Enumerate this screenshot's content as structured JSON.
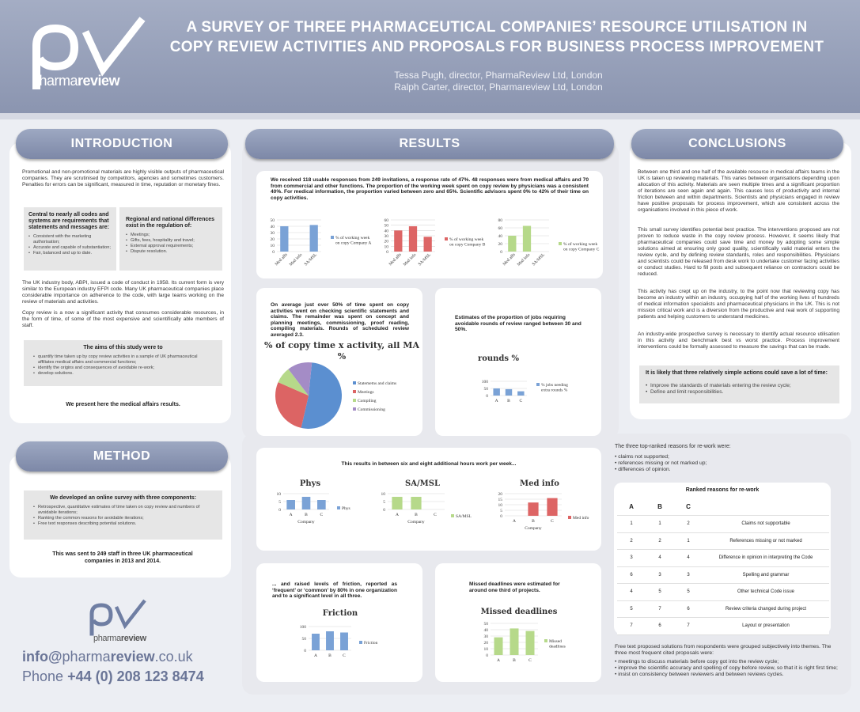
{
  "header": {
    "title_line1": "A SURVEY OF THREE PHARMACEUTICAL COMPANIES’ RESOURCE UTILISATION IN",
    "title_line2": "COPY REVIEW ACTIVITIES AND PROPOSALS FOR BUSINESS PROCESS IMPROVEMENT",
    "author1": "Tessa Pugh, director, PharmaReview Ltd, London",
    "author2": "Ralph Carter, director, Pharmareview Ltd, London",
    "logo_text_a": "pharma",
    "logo_text_b": "review"
  },
  "intro": {
    "heading": "INTRODUCTION",
    "p1": "Promotional and non-promotional materials are highly visible outputs of pharmaceutical companies. They are scrutinised by competitors, agencies and sometimes customers. Penalties for errors can be significant, measured in time, reputation or monetary fines.",
    "box1_title": "Central to nearly all codes and systems are requirements that statements and messages are:",
    "box1_items": [
      "Consistent with the marketing authorisation;",
      "Accurate and capable of substantiation;",
      "Fair, balanced and up to date."
    ],
    "box2_title": "Regional and national differences exist in the regulation of:",
    "box2_items": [
      "Meetings;",
      "Gifts, fees, hospitality and travel;",
      "External approval requirements;",
      "Dispute resolution."
    ],
    "p2": "The UK industry body, ABPI, issued a code of conduct in 1958. Its current form is very similar to the European industry EFPI code. Many UK pharmaceutical companies place considerable importance on adherence to the code, with large teams working on the review of materials and activities.",
    "p3": "Copy review is a now a significant activity that consumes considerable resources, in the form of time, of some of the most expensive and scientifically able members of staff.",
    "aims_title": "The aims of this study were to",
    "aims_items": [
      "quantify time taken up by copy review activities in a sample of UK pharmaceutical affiliates medical affairs and commercial functions;",
      "identify the origins and consequences of avoidable re-work;",
      "develop solutions."
    ],
    "present": "We present here the medical affairs results."
  },
  "method": {
    "heading": "METHOD",
    "box_title": "We developed an online survey with three components:",
    "items": [
      "Retrospective, quantitative estimates of time taken on copy review and numbers of avoidable iterations;",
      "Ranking the common reasons for avoidable iterations;",
      "Free text responses describing potential solutions."
    ],
    "sent": "This was sent to 249 staff in three UK pharmaceutical companies in 2013 and 2014."
  },
  "contact": {
    "email_a": "info@",
    "email_b": "pharma",
    "email_c": "review",
    "email_d": ".co.uk",
    "phone_a": "Phone ",
    "phone_b": "+44 (0) 208 123 8474",
    "logo_text_a": "pharma",
    "logo_text_b": "review"
  },
  "results": {
    "heading": "RESULTS",
    "r1": "We received 118 usable responses from 249 invitations, a response rate of 47%. 48 responses were from medical affairs and 70 from commercial and other functions. The proportion of the working week spent on copy review by physicians was a consistent 40%. For medical information, the proportion varied between zero and 65%. Scientific advisors spent 0% to 42% of their time on copy activities.",
    "r2": "On average just over 50% of time spent on copy activities went on checking scientific statements and claims. The remainder was spent on concept and planning meetings, commissioning, proof reading, compiling materials. Rounds of scheduled review averaged 2.3.",
    "r3": "Estimates of the proportion of jobs requiring avoidable rounds of review ranged between 30 and 50%.",
    "r4": "This results in between six and eight additional hours work per week...",
    "r5": "... and raised levels of friction, reported as ‘frequent’ or ‘common’ by 80% in one organization and to a significant level in all three.",
    "r6": "Missed deadlines were estimated for around one third of projects.",
    "reasons_intro": "The three top-ranked reasons for re-work were:",
    "reasons": [
      "claims not supported;",
      "references missing or not marked up;",
      "differences of opinion."
    ],
    "table_title": "Ranked reasons for re-work",
    "table_headers": [
      "A",
      "B",
      "C",
      ""
    ],
    "table_rows": [
      [
        "1",
        "1",
        "2",
        "Claims not supportable"
      ],
      [
        "2",
        "2",
        "1",
        "References missing or not marked"
      ],
      [
        "3",
        "4",
        "4",
        "Difference in opinion in interpreting the Code"
      ],
      [
        "6",
        "3",
        "3",
        "Spelling and grammar"
      ],
      [
        "4",
        "5",
        "5",
        "Other technical Code issue"
      ],
      [
        "5",
        "7",
        "6",
        "Review criteria changed during project"
      ],
      [
        "7",
        "6",
        "7",
        "Layout or presentation"
      ]
    ],
    "free_intro": "Free text proposed solutions from respondents were grouped subjectively into themes. The three most frequent cited proposals were:",
    "free_items": [
      "meetings to discuss materials before copy got into the review cycle;",
      "improve the scientific accuracy and spelling of copy before review, so that it is right first time;",
      "insist on consistency between reviewers and between reviews cycles."
    ]
  },
  "conclusions": {
    "heading": "CONCLUSIONS",
    "c1": "Between one third and one half of the available resource in medical affairs teams in the UK is taken up reviewing materials. This varies between organisations depending upon allocation of this activity. Materials are seen multiple times and a significant proportion of iterations are seen again and again. This causes loss of productivity and internal friction between and within departments. Scientists and physicians engaged in review have positive proposals for process improvement, which are consistent across the organisations involved in this piece of work.",
    "c2": "This small survey identifies potential best practice. The interventions proposed are not proven to reduce waste in the copy review process. However, it seems likely that pharmaceutical companies could save time and money by adopting some simple solutions aimed at ensuring only good quality, scientifically valid material enters the review cycle, and by defining review standards, roles and responsibilities. Physicians and scientists could be released from desk work to undertake customer facing activities or conduct studies. Hard to fill posts and subsequent reliance on contractors could be reduced.",
    "c3": "This activity has crept up on the industry, to the point now that reviewing copy has become an industry within an industry, occupying half of the working lives of hundreds of medical information specialists and pharmaceutical physicians in the UK. This is not mission critical work and is a diversion from the productive and real work of supporting patients and helping customers to understand medicines.",
    "c4": "An industry-wide prospective survey is necessary to identify actual resource utilisation in this activity and benchmark best vs worst practice. Process improvement interventions could be formally assessed to measure the savings that can be made.",
    "box_title": "It is likely that three relatively simple actions could save a lot of time:",
    "box_items": [
      "Improve the standards of materials entering the review cycle;",
      "Define and limit responsibilities."
    ]
  },
  "chart_data": [
    {
      "type": "bar",
      "id": "A",
      "categories": [
        "Med affs",
        "Med info",
        "SA/MSL"
      ],
      "values": [
        40,
        0,
        42
      ],
      "ylim": [
        0,
        50
      ],
      "yticks": [
        0,
        10,
        20,
        30,
        40,
        50
      ],
      "legend": "% of working week on copy Company A",
      "color": "#7aa2d6"
    },
    {
      "type": "bar",
      "id": "B",
      "categories": [
        "Med affs",
        "Med info",
        "SA/MSL"
      ],
      "values": [
        40,
        48,
        28
      ],
      "ylim": [
        0,
        60
      ],
      "yticks": [
        0,
        10,
        20,
        30,
        40,
        50,
        60
      ],
      "legend": "% of working week on copy Company B",
      "color": "#dd6565"
    },
    {
      "type": "bar",
      "id": "C",
      "categories": [
        "Med affs",
        "Med info",
        "SA/MSL"
      ],
      "values": [
        40,
        65,
        0
      ],
      "ylim": [
        0,
        80
      ],
      "yticks": [
        0,
        20,
        40,
        60,
        80
      ],
      "legend": "% of working week on copy Company C",
      "color": "#b6d98a"
    },
    {
      "type": "pie",
      "id": "pie",
      "title": "% of copy time x activity, all MA %",
      "labels": [
        "Statemetns and claims",
        "Meetings",
        "Compiling",
        "Commissioning"
      ],
      "values": [
        52,
        28,
        8,
        12
      ],
      "colors": [
        "#5b8fd0",
        "#dc6464",
        "#b6d98a",
        "#a48cc6"
      ]
    },
    {
      "type": "bar",
      "id": "jobs",
      "title": "% jobs needing extra rounds %",
      "categories": [
        "A",
        "B",
        "C"
      ],
      "values": [
        50,
        45,
        30
      ],
      "ylim": [
        0,
        100
      ],
      "yticks": [
        0,
        50,
        100
      ],
      "legend": "% jobs needing extra rounds %",
      "color": "#7aa2d6"
    },
    {
      "type": "bar",
      "id": "phys",
      "title": "Phys",
      "categories": [
        "A",
        "B",
        "C"
      ],
      "values": [
        6,
        8,
        6
      ],
      "ylim": [
        0,
        10
      ],
      "yticks": [
        0,
        5,
        10
      ],
      "legend": "Phys",
      "xlabel": "Company",
      "color": "#7aa2d6"
    },
    {
      "type": "bar",
      "id": "sa",
      "title": "SA/MSL",
      "categories": [
        "A",
        "B",
        "C"
      ],
      "values": [
        8,
        8,
        0
      ],
      "ylim": [
        0,
        10
      ],
      "yticks": [
        0,
        5,
        10
      ],
      "legend": "SA/MSL",
      "xlabel": "Company",
      "color": "#b6d98a"
    },
    {
      "type": "bar",
      "id": "mi",
      "title": "Med info",
      "categories": [
        "A",
        "B",
        "C"
      ],
      "values": [
        0,
        12,
        16
      ],
      "ylim": [
        0,
        20
      ],
      "yticks": [
        0,
        5,
        10,
        15,
        20
      ],
      "legend": "Med info",
      "xlabel": "Company",
      "color": "#dd6565"
    },
    {
      "type": "bar",
      "id": "fric",
      "title": "Friction",
      "categories": [
        "A",
        "B",
        "C"
      ],
      "values": [
        70,
        80,
        75
      ],
      "ylim": [
        0,
        100
      ],
      "yticks": [
        0,
        50,
        100
      ],
      "legend": "Friction",
      "color": "#7aa2d6"
    },
    {
      "type": "bar",
      "id": "miss",
      "title": "Missed deadlines",
      "categories": [
        "A",
        "B",
        "C"
      ],
      "values": [
        28,
        42,
        38
      ],
      "ylim": [
        0,
        50
      ],
      "yticks": [
        0,
        10,
        20,
        30,
        40,
        50
      ],
      "legend": "Missed deadlines",
      "color": "#b6d98a"
    }
  ]
}
